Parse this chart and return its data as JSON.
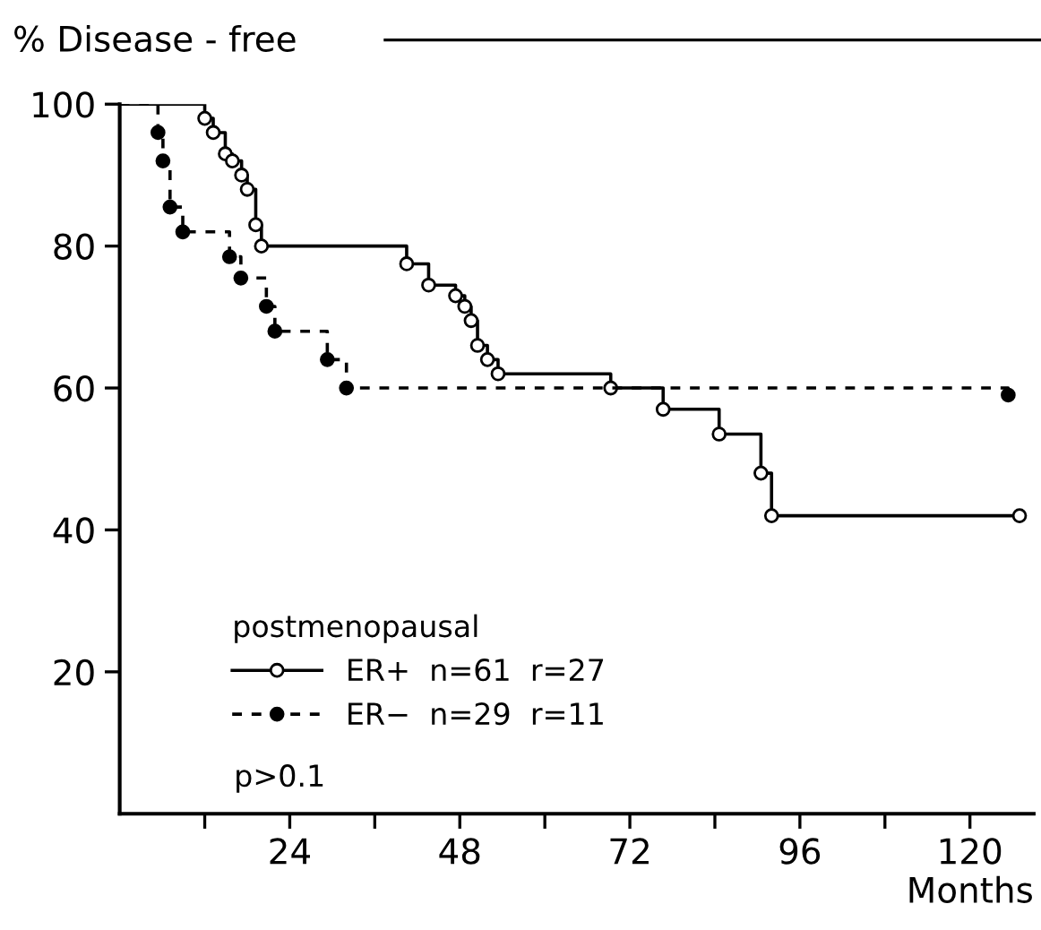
{
  "chart_data": {
    "type": "step",
    "ylabel": "% Disease - free",
    "xlabel": "Months",
    "legend_title": "postmenopausal",
    "annotations": [
      "p>0.1"
    ],
    "series": [
      {
        "name": "ER+  n=61  r=27",
        "color": "#000000",
        "line_style": "solid",
        "x": [
          0,
          12,
          13.2,
          14.9,
          15.9,
          17.2,
          18,
          19.2,
          20,
          40.5,
          43.6,
          47.4,
          48.7,
          49.6,
          50.5,
          51.9,
          53.4,
          69.3,
          76.7,
          84.6,
          90.5,
          92,
          127
        ],
        "values": [
          100,
          98,
          96,
          93,
          92,
          90,
          88,
          83,
          80,
          77.5,
          74.5,
          73,
          71.5,
          69.5,
          66,
          64,
          62,
          60,
          57,
          53.5,
          48,
          42,
          42
        ]
      },
      {
        "name": "ER−  n=29  r=11",
        "color": "#000000",
        "line_style": "dashed",
        "x": [
          0,
          5.4,
          6.1,
          7.1,
          8.9,
          15.5,
          17.1,
          20.7,
          21.9,
          29.3,
          32,
          125.4
        ],
        "values": [
          100,
          96,
          92,
          85.5,
          82,
          78.5,
          75.5,
          71.5,
          68,
          64,
          60,
          59
        ]
      }
    ],
    "marker": "circle",
    "xlim": [
      0,
      129
    ],
    "ylim": [
      0,
      100
    ],
    "xticks": [
      {
        "value": 12,
        "label": null
      },
      24,
      {
        "value": 36,
        "label": null
      },
      48,
      {
        "value": 60,
        "label": null
      },
      72,
      {
        "value": 84,
        "label": null
      },
      96,
      {
        "value": 108,
        "label": null
      },
      120
    ],
    "yticks": [
      20,
      40,
      60,
      80,
      100
    ],
    "grid": false,
    "legend": "bottom left"
  }
}
